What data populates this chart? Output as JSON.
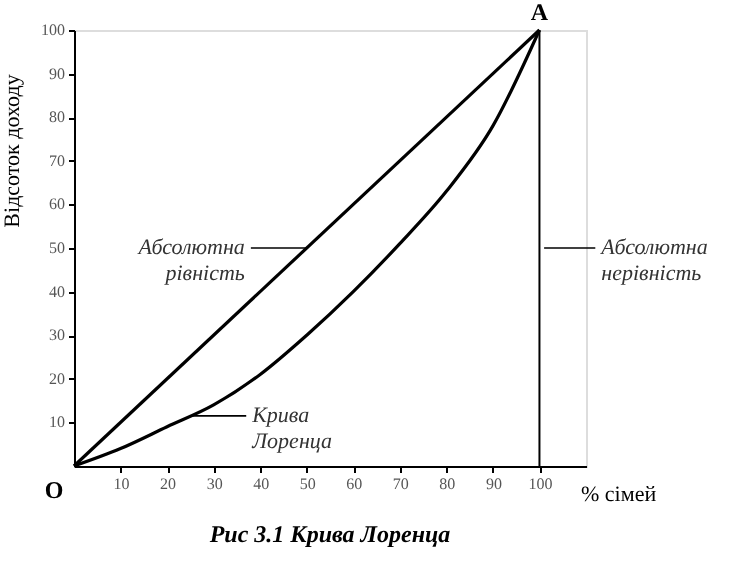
{
  "chart_data": {
    "type": "line",
    "title": "Рис 3.1 Крива Лоренца",
    "xlabel": "% сімей",
    "ylabel": "Відсоток доходу",
    "xlim": [
      0,
      110
    ],
    "ylim": [
      0,
      100
    ],
    "xticks": [
      10,
      20,
      30,
      40,
      50,
      60,
      70,
      80,
      90,
      100
    ],
    "yticks": [
      10,
      20,
      30,
      40,
      50,
      60,
      70,
      80,
      90,
      100
    ],
    "marker": "none",
    "line_style": "solid",
    "series": [
      {
        "name": "Абсолютна рівність",
        "color": "#000000",
        "x": [
          0,
          100
        ],
        "values": [
          0,
          100
        ]
      },
      {
        "name": "Крива Лоренца",
        "color": "#000000",
        "x": [
          0,
          10,
          20,
          30,
          40,
          50,
          60,
          70,
          80,
          90,
          100
        ],
        "values": [
          0,
          4,
          9,
          14,
          21,
          30,
          40,
          51,
          63,
          78,
          100
        ]
      }
    ],
    "ref_lines": [
      {
        "axis": "x",
        "value": 100,
        "label": "Абсолютна нерівність",
        "color": "#000000",
        "line_style": "solid"
      }
    ],
    "annotations": [
      {
        "text": "O",
        "x": 0,
        "y": 0
      },
      {
        "text": "A",
        "x": 100,
        "y": 100
      }
    ]
  }
}
